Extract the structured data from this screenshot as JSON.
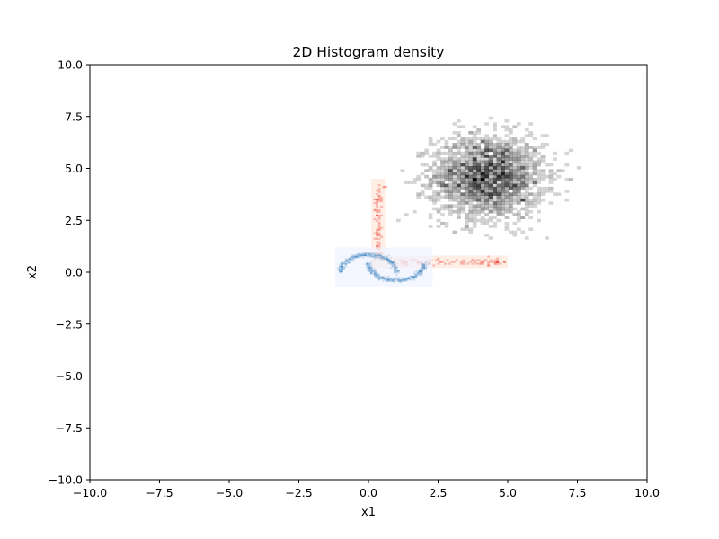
{
  "chart_data": {
    "type": "heatmap",
    "title": "2D Histogram density",
    "xlabel": "x1",
    "ylabel": "x2",
    "xlim": [
      -10.0,
      10.0
    ],
    "ylim": [
      -10.0,
      10.0
    ],
    "grid": false,
    "x_ticks": [
      -10.0,
      -7.5,
      -5.0,
      -2.5,
      0.0,
      2.5,
      5.0,
      7.5,
      10.0
    ],
    "y_ticks": [
      -10.0,
      -7.5,
      -5.0,
      -2.5,
      0.0,
      2.5,
      5.0,
      7.5,
      10.0
    ],
    "x_tick_labels": [
      "−10.0",
      "−7.5",
      "−5.0",
      "−2.5",
      "0.0",
      "2.5",
      "5.0",
      "7.5",
      "10.0"
    ],
    "y_tick_labels": [
      "−10.0",
      "−7.5",
      "−5.0",
      "−2.5",
      "0.0",
      "2.5",
      "5.0",
      "7.5",
      "10.0"
    ],
    "layers": [
      {
        "colormap": "Greys",
        "color": "#000000",
        "shape": "gaussian blob",
        "x_range": [
          1.0,
          8.2
        ],
        "y_range": [
          1.3,
          7.5
        ],
        "center": [
          4.3,
          4.6
        ],
        "spread": [
          1.0,
          1.0
        ]
      },
      {
        "colormap": "Reds",
        "color": "#ef3b2c",
        "shape": "L-shape",
        "x_range": [
          0.1,
          5.0
        ],
        "y_range": [
          0.2,
          4.5
        ],
        "vertical_arm_x": [
          0.1,
          0.6
        ],
        "horizontal_arm_y": [
          0.2,
          0.8
        ]
      },
      {
        "colormap": "Blues",
        "color": "#2171b5",
        "shape": "two moons",
        "x_range": [
          -1.2,
          2.3
        ],
        "y_range": [
          -0.7,
          1.2
        ]
      }
    ]
  }
}
